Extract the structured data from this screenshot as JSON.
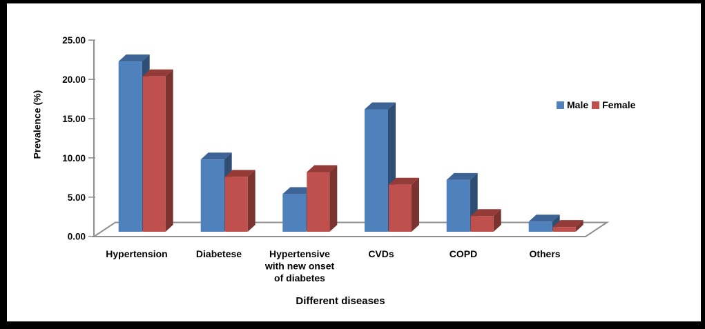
{
  "figure": {
    "background": "#ffffff",
    "border_color": "#000000",
    "axis_line_color": "#8f8f8f"
  },
  "chart_data": {
    "type": "bar",
    "style": "3d-clustered",
    "title": "",
    "xlabel": "Different diseases",
    "ylabel": "Prevalence (%)",
    "categories": [
      "Hypertension",
      "Diabetese",
      "Hypertensive\nwith new onset\nof diabetes",
      "CVDs",
      "COPD",
      "Others"
    ],
    "series": [
      {
        "name": "Male",
        "color": "#4F81BD",
        "color_top": "#3D6494",
        "color_side": "#2E4E73",
        "values": [
          21.7,
          9.2,
          4.8,
          15.6,
          6.6,
          1.3
        ]
      },
      {
        "name": "Female",
        "color": "#C0504D",
        "color_top": "#943B38",
        "color_side": "#7B3330",
        "values": [
          19.8,
          7.0,
          7.6,
          6.0,
          2.0,
          0.6
        ]
      }
    ],
    "ylim": [
      0,
      25
    ],
    "yticks": [
      "0.00",
      "5.00",
      "10.00",
      "15.00",
      "20.00",
      "25.00"
    ],
    "grid": false,
    "legend_position": "right"
  }
}
